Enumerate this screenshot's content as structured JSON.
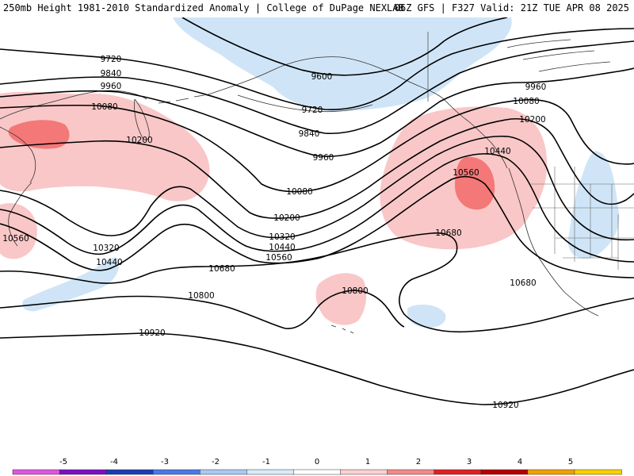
{
  "header": {
    "title": "250mb Height 1981-2010 Standardized Anomaly | College of DuPage NEXLAB",
    "run_info": "06Z GFS | F327 Valid: 21Z TUE APR 08 2025"
  },
  "contour_labels": [
    "9600",
    "9720",
    "9720",
    "9840",
    "9840",
    "9960",
    "9960",
    "9960",
    "10080",
    "10080",
    "10080",
    "10200",
    "10200",
    "10200",
    "10320",
    "10320",
    "10440",
    "10440",
    "10440",
    "10560",
    "10560",
    "10560",
    "10680",
    "10680",
    "10680",
    "10800",
    "10800",
    "10920",
    "10920"
  ],
  "colors": {
    "neg_weak": "#cfe5f7",
    "pos_weak": "#f9c7c7",
    "pos_mod": "#f47878",
    "contour": "#000000",
    "coast": "#333333"
  },
  "legend": {
    "labels": [
      "-5",
      "-4",
      "-3",
      "-2",
      "-1",
      "0",
      "1",
      "2",
      "3",
      "4",
      "5"
    ],
    "colors": [
      "#e055e0",
      "#7a0ec4",
      "#1a3cb4",
      "#4a78e8",
      "#a8c8f4",
      "#d8eafc",
      "#ffffff",
      "#fbd0d0",
      "#f48888",
      "#e02020",
      "#b40000",
      "#f0a000",
      "#f8d000"
    ]
  }
}
